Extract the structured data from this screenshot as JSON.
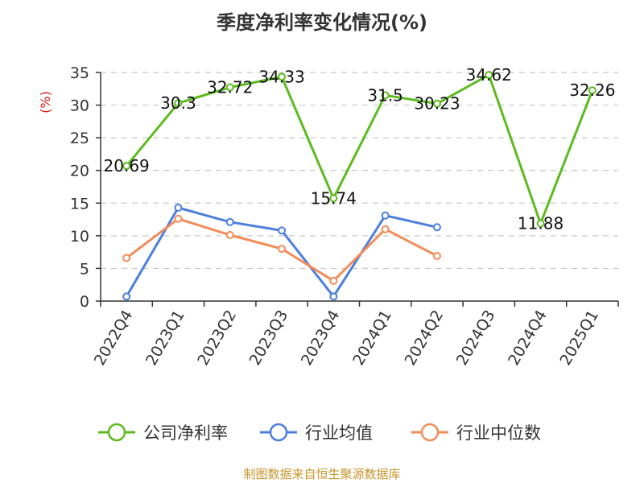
{
  "chart_data": {
    "type": "line",
    "title": "季度净利率变化情况(%)",
    "ylabel": "(%)",
    "ylim": [
      0,
      35
    ],
    "yticks": [
      0,
      5,
      10,
      15,
      20,
      25,
      30,
      35
    ],
    "grid": true,
    "legend_position": "bottom",
    "categories": [
      "2022Q4",
      "2023Q1",
      "2023Q2",
      "2023Q3",
      "2023Q4",
      "2024Q1",
      "2024Q2",
      "2024Q3",
      "2024Q4",
      "2025Q1"
    ],
    "series": [
      {
        "name": "公司净利率",
        "color": "#5dbb1f",
        "show_labels": true,
        "values": [
          20.69,
          30.3,
          32.72,
          34.33,
          15.74,
          31.5,
          30.23,
          34.62,
          11.88,
          32.26
        ]
      },
      {
        "name": "行业均值",
        "color": "#4c7fdc",
        "show_labels": false,
        "values": [
          0.7,
          14.3,
          12.1,
          10.8,
          0.7,
          13.1,
          11.3,
          null,
          null,
          null
        ]
      },
      {
        "name": "行业中位数",
        "color": "#f28c58",
        "show_labels": false,
        "values": [
          6.6,
          12.6,
          10.1,
          8.0,
          3.1,
          11.0,
          6.9,
          null,
          null,
          null
        ]
      }
    ],
    "source": "制图数据来自恒生聚源数据库"
  }
}
